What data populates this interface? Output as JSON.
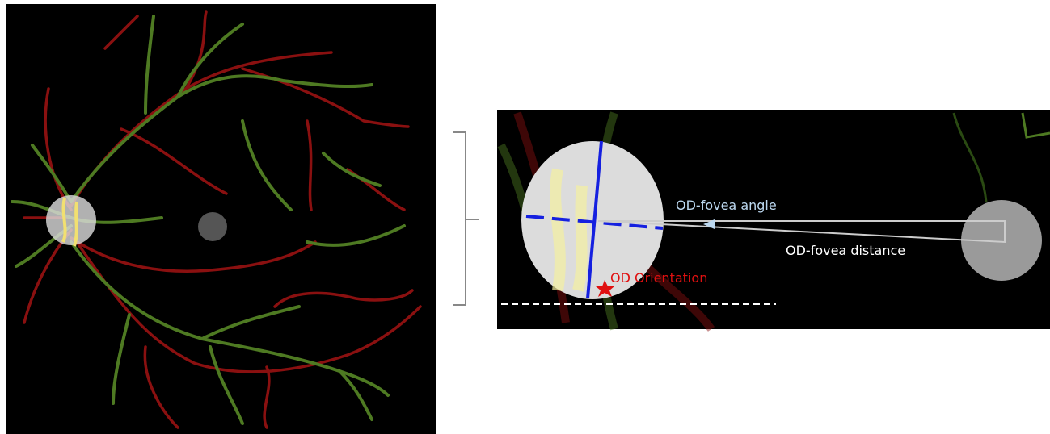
{
  "labels": {
    "angle": "OD-fovea angle",
    "distance": "OD-fovea distance",
    "orientation": "OD Orientation"
  }
}
